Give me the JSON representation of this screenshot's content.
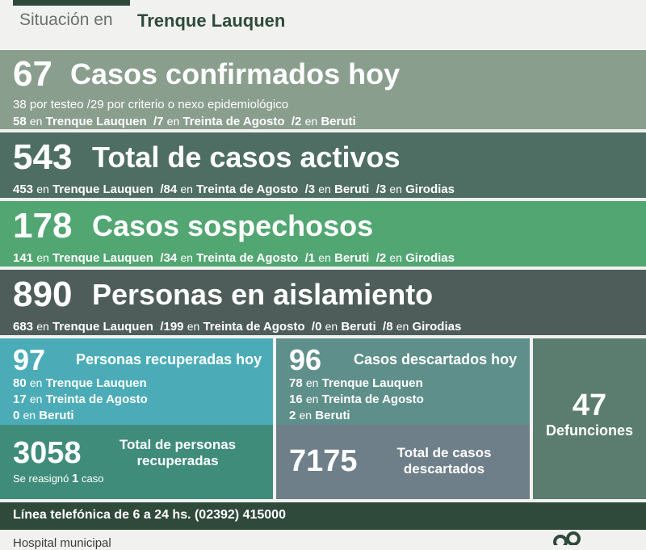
{
  "header": {
    "prefix": "Situación en",
    "city": "Trenque Lauquen"
  },
  "confirmados": {
    "num": "67",
    "title": "Casos confirmados hoy",
    "line1": "38 por testeo  /29 por criterio o nexo epidemiológico",
    "line2": {
      "a_num": "58",
      "en1": "en",
      "a_loc": "Trenque Lauquen",
      "b_num": "/7",
      "en2": "en",
      "b_loc": "Treinta de Agosto",
      "c_num": "/2",
      "en3": "en",
      "c_loc": "Beruti"
    }
  },
  "activos": {
    "num": "543",
    "title": "Total de casos activos",
    "line": {
      "a_num": "453",
      "en1": "en",
      "a_loc": "Trenque Lauquen",
      "b_num": "/84",
      "en2": "en",
      "b_loc": "Treinta de Agosto",
      "c_num": "/3",
      "en3": "en",
      "c_loc": "Beruti",
      "d_num": "/3",
      "en4": "en",
      "d_loc": "Girodias"
    }
  },
  "sospechosos": {
    "num": "178",
    "title": "Casos sospechosos",
    "line": {
      "a_num": "141",
      "en1": "en",
      "a_loc": "Trenque Lauquen",
      "b_num": "/34",
      "en2": "en",
      "b_loc": "Treinta de Agosto",
      "c_num": "/1",
      "en3": "en",
      "c_loc": "Beruti",
      "d_num": "/2",
      "en4": "en",
      "d_loc": "Girodias"
    }
  },
  "aislamiento": {
    "num": "890",
    "title": "Personas en aislamiento",
    "line": {
      "a_num": "683",
      "en1": "en",
      "a_loc": "Trenque Lauquen",
      "b_num": "/199",
      "en2": "en",
      "b_loc": "Treinta de Agosto",
      "c_num": "/0",
      "en3": "en",
      "c_loc": "Beruti",
      "d_num": "/8",
      "en4": "en",
      "d_loc": "Girodias"
    }
  },
  "recuperados_hoy": {
    "num": "97",
    "title": "Personas recuperadas hoy",
    "rows": [
      {
        "num": "80",
        "en": "en",
        "loc": "Trenque Lauquen"
      },
      {
        "num": "17",
        "en": "en",
        "loc": "Treinta de Agosto"
      },
      {
        "num": "0",
        "en": "en",
        "loc": "Beruti"
      }
    ]
  },
  "recuperados_total": {
    "num": "3058",
    "title_l1": "Total de personas",
    "title_l2": "recuperadas",
    "note_a": "Se reasignó",
    "note_num": "1",
    "note_b": "caso"
  },
  "descartados_hoy": {
    "num": "96",
    "title": "Casos descartados hoy",
    "rows": [
      {
        "num": "78",
        "en": "en",
        "loc": "Trenque Lauquen"
      },
      {
        "num": "16",
        "en": "en",
        "loc": "Treinta de Agosto"
      },
      {
        "num": "2",
        "en": "en",
        "loc": "Beruti"
      }
    ]
  },
  "descartados_total": {
    "num": "7175",
    "title_l1": "Total de casos",
    "title_l2": "descartados"
  },
  "defunciones": {
    "num": "47",
    "label": "Defunciones"
  },
  "phone": {
    "text": "Línea telefónica de 6 a 24 hs. (02392) 415000"
  },
  "footer": {
    "text": "Hospital municipal"
  }
}
